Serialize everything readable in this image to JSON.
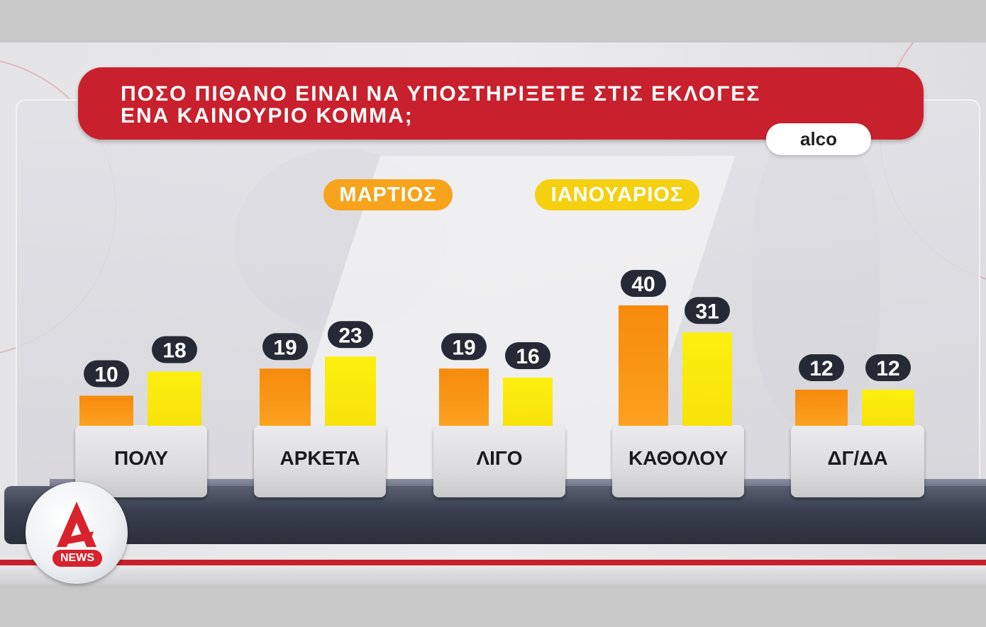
{
  "title": "ΠΟΣΟ ΠΙΘΑΝΟ ΕΙΝΑΙ ΝΑ ΥΠΟΣΤΗΡΙΞΕΤΕ ΣΤΙΣ ΕΚΛΟΓΕΣ\nΕΝΑ ΚΑΙΝΟΥΡΙΟ ΚΟΜΜΑ;",
  "source": "alco",
  "logo": {
    "label": "NEWS",
    "icon": "alpha-news-logo-icon"
  },
  "colors": {
    "title_bg": "#c8202c",
    "series_0": "#f7a31b",
    "series_1": "#f5d010"
  },
  "chart_data": {
    "type": "bar",
    "categories": [
      "ΠΟΛΥ",
      "ΑΡΚΕΤΑ",
      "ΛΙΓΟ",
      "ΚΑΘΟΛΟΥ",
      "ΔΓ/ΔΑ"
    ],
    "series": [
      {
        "name": "ΜΑΡΤΙΟΣ",
        "values": [
          10,
          19,
          19,
          40,
          12
        ],
        "color": "#f7a31b"
      },
      {
        "name": "ΙΑΝΟΥΑΡΙΟΣ",
        "values": [
          18,
          23,
          16,
          31,
          12
        ],
        "color": "#f5d010"
      }
    ],
    "legend_position": "top",
    "grid": false
  }
}
